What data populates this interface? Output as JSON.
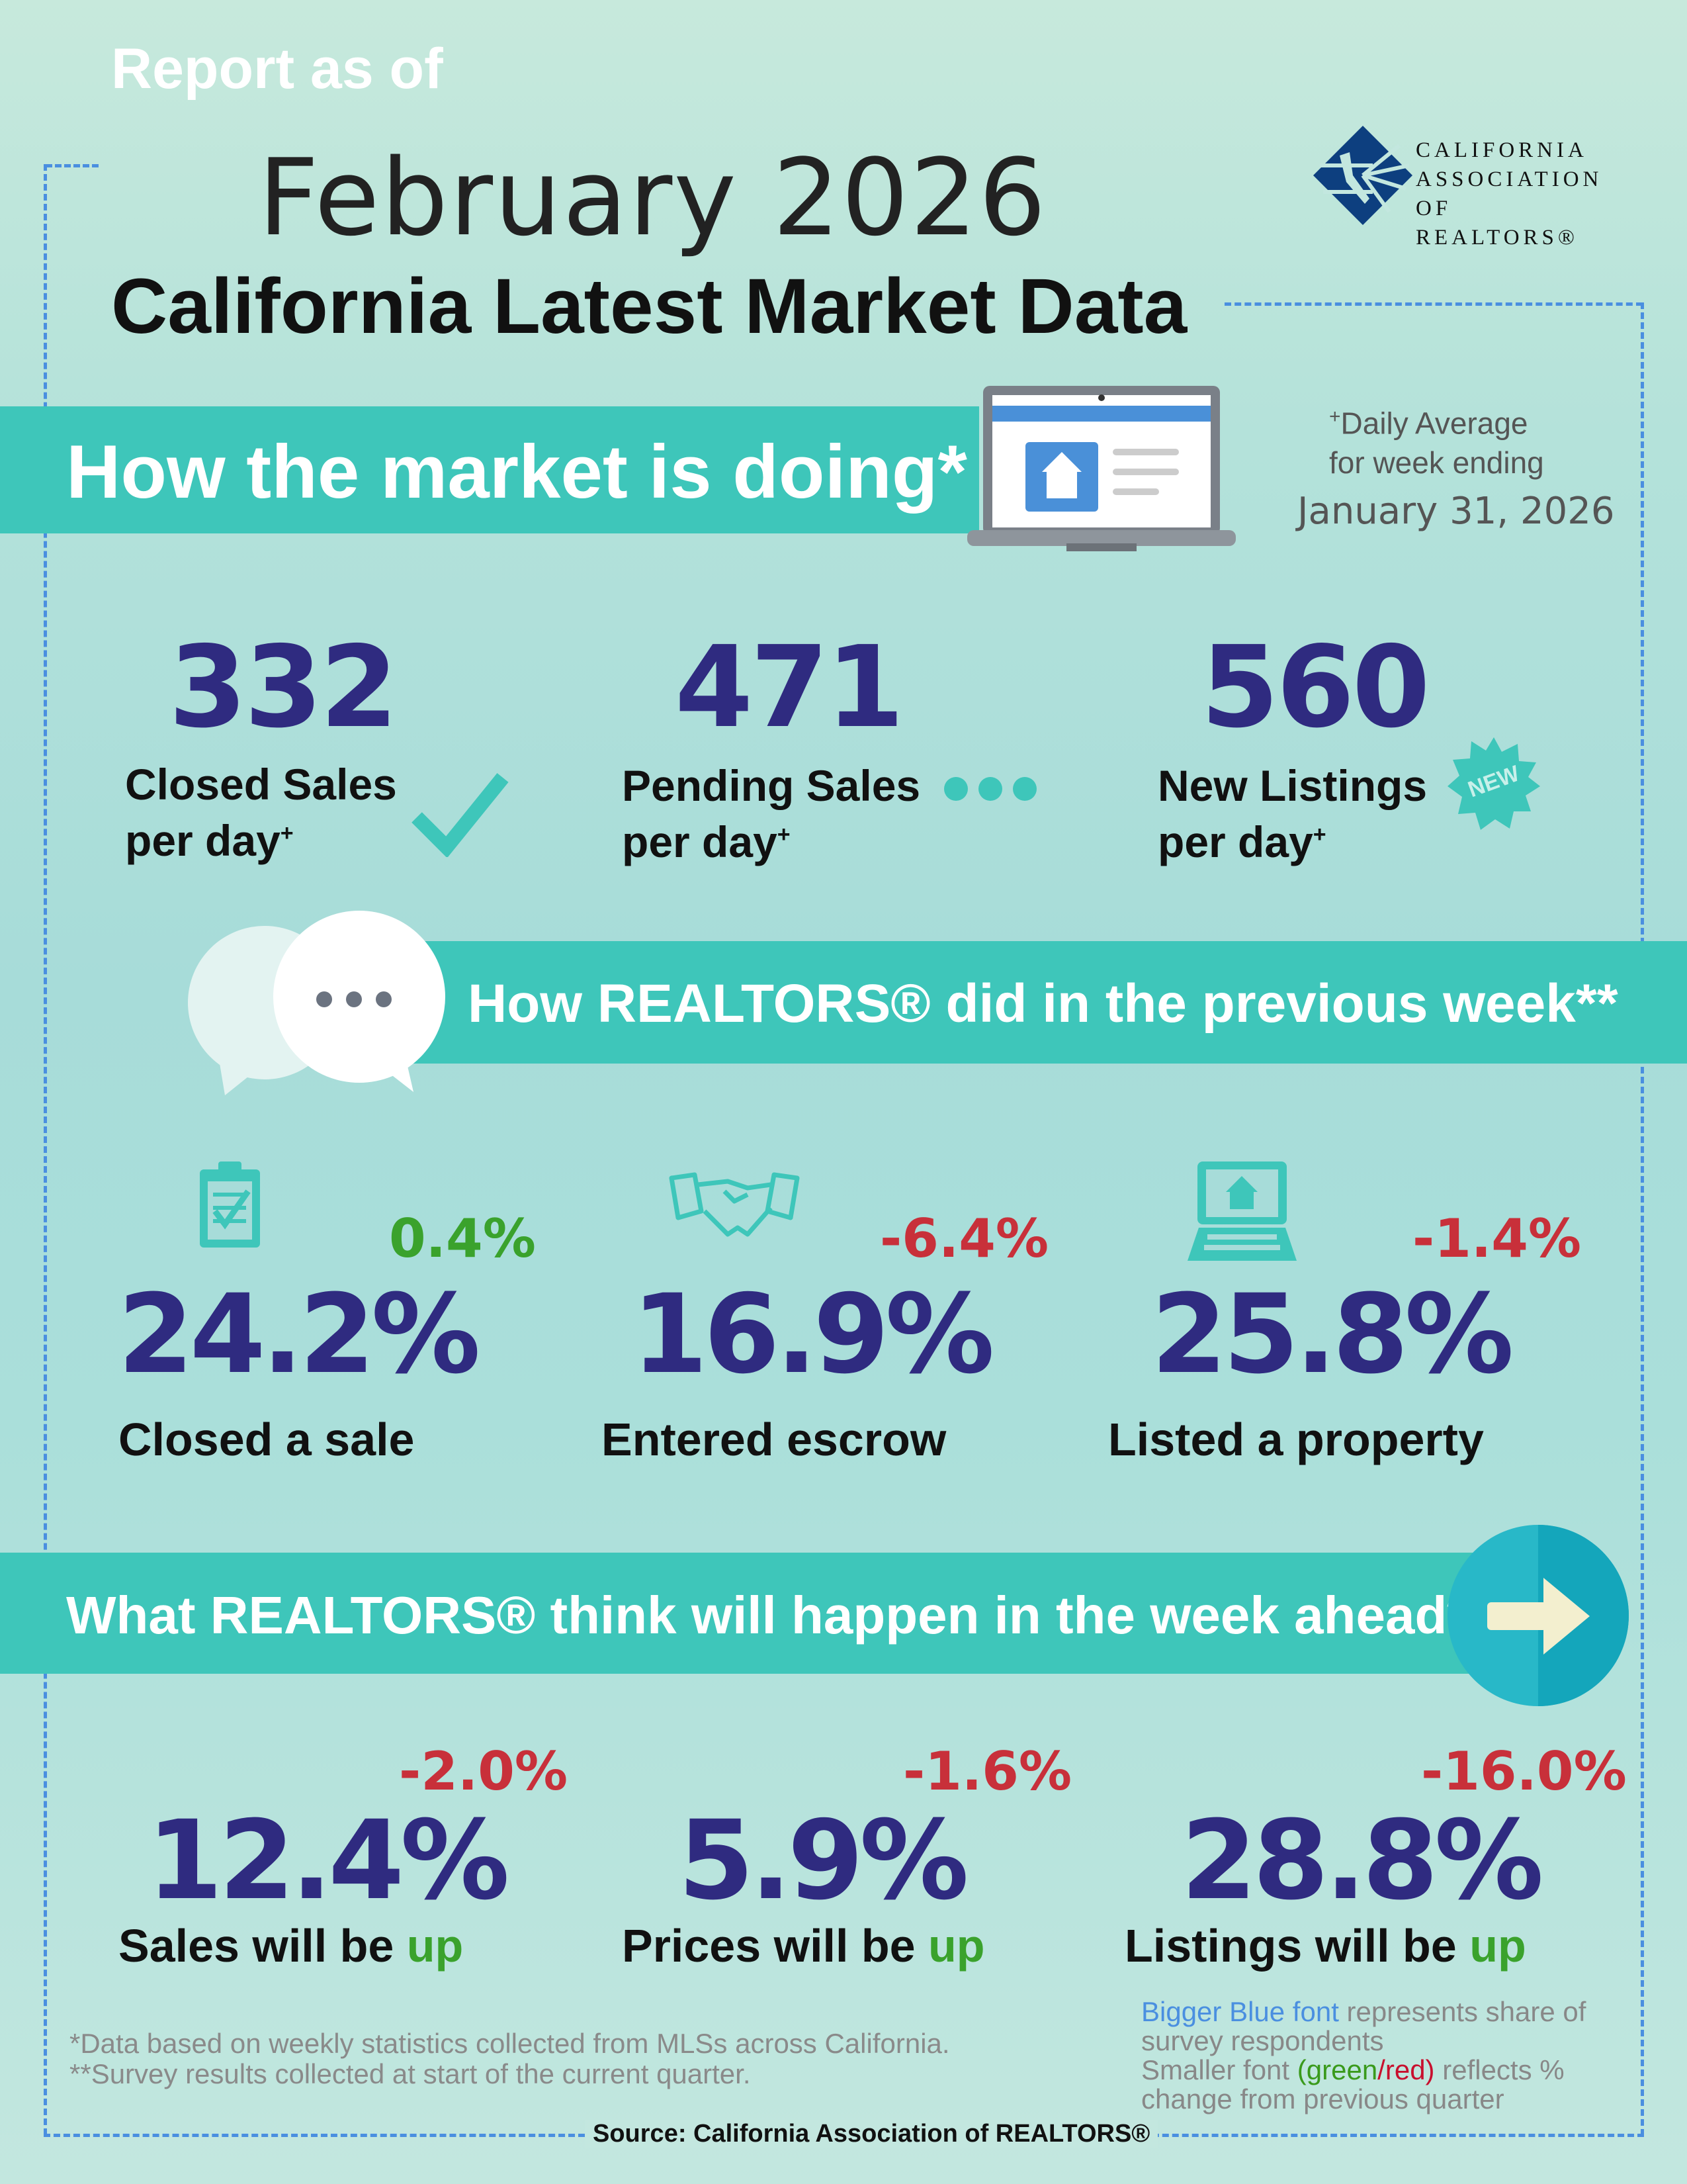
{
  "header": {
    "report_as_of": "Report as of",
    "month": "February 2026",
    "title": "California Latest Market Data"
  },
  "logo": {
    "line1": "CALIFORNIA",
    "line2": "ASSOCIATION",
    "line3": "OF REALTORS®",
    "color": "#0d3f7f"
  },
  "market": {
    "banner": "How the market is doing*",
    "note_line1": "Daily Average",
    "note_plus": "+",
    "note_line2": "for week ending",
    "week_ending": "January 31, 2026",
    "stats": [
      {
        "value": "332",
        "label1": "Closed Sales",
        "label2": "per day",
        "icon": "checkmark-icon"
      },
      {
        "value": "471",
        "label1": "Pending Sales",
        "label2": "per day",
        "icon": "dots-icon"
      },
      {
        "value": "560",
        "label1": "New Listings",
        "label2": "per day",
        "icon": "new-badge-icon",
        "badge": "NEW"
      }
    ]
  },
  "previous_week": {
    "banner": "How REALTORS® did in the previous week**",
    "items": [
      {
        "value": "24.2%",
        "change": "0.4%",
        "change_dir": "up",
        "label": "Closed a sale",
        "icon": "clipboard-icon"
      },
      {
        "value": "16.9%",
        "change": "-6.4%",
        "change_dir": "down",
        "label": "Entered escrow",
        "icon": "handshake-icon"
      },
      {
        "value": "25.8%",
        "change": "-1.4%",
        "change_dir": "down",
        "label": "Listed a property",
        "icon": "laptop-house-icon"
      }
    ]
  },
  "week_ahead": {
    "banner": "What REALTORS® think will happen in the week ahead**",
    "items": [
      {
        "value": "12.4%",
        "change": "-2.0%",
        "label": "Sales will be",
        "dir": "up"
      },
      {
        "value": "5.9%",
        "change": "-1.6%",
        "label": "Prices will be",
        "dir": "up"
      },
      {
        "value": "28.8%",
        "change": "-16.0%",
        "label": "Listings will be",
        "dir": "up"
      }
    ]
  },
  "footnotes": {
    "line1": "*Data based on weekly statistics collected from MLSs across California.",
    "line2": "**Survey results collected at start of the current quarter."
  },
  "legend": {
    "blue": "Bigger Blue font",
    "blue_rest": "represents share of survey respondents",
    "small": "Smaller font",
    "green": "(green",
    "slash": "/",
    "red": "red)",
    "small_rest": "reflects % change from previous quarter"
  },
  "source": "Source: California Association of REALTORS®",
  "colors": {
    "accent": "#3ec6ba",
    "number": "#2f2b80",
    "green": "#3aa22c",
    "red": "#c8303a",
    "border": "#4a8fe0",
    "legend_blue": "#4a8fe0"
  }
}
